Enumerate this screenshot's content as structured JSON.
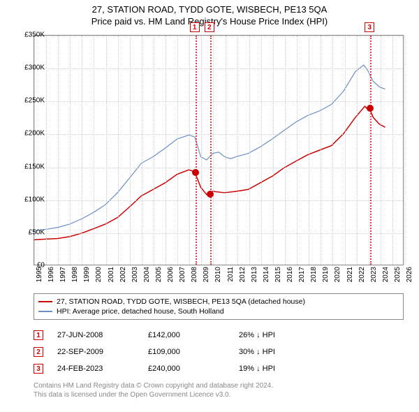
{
  "title": {
    "line1": "27, STATION ROAD, TYDD GOTE, WISBECH, PE13 5QA",
    "line2": "Price paid vs. HM Land Registry's House Price Index (HPI)"
  },
  "chart": {
    "type": "line",
    "xlim": [
      1995,
      2026
    ],
    "ylim": [
      0,
      350000
    ],
    "ytick_step": 50000,
    "yticks": [
      "£0",
      "£50K",
      "£100K",
      "£150K",
      "£200K",
      "£250K",
      "£300K",
      "£350K"
    ],
    "xticks": [
      1995,
      1996,
      1997,
      1998,
      1999,
      2000,
      2001,
      2002,
      2003,
      2004,
      2005,
      2006,
      2007,
      2008,
      2009,
      2010,
      2011,
      2012,
      2013,
      2014,
      2015,
      2016,
      2017,
      2018,
      2019,
      2020,
      2021,
      2022,
      2023,
      2024,
      2025,
      2026
    ],
    "grid_color": "#cccccc",
    "background_color": "#ffffff",
    "border_color": "#888888",
    "series": [
      {
        "name": "property",
        "label": "27, STATION ROAD, TYDD GOTE, WISBECH, PE13 5QA (detached house)",
        "color": "#cc0000",
        "line_width": 1.5,
        "points": [
          [
            1995.0,
            38000
          ],
          [
            1996.0,
            39000
          ],
          [
            1997.0,
            40000
          ],
          [
            1998.0,
            43000
          ],
          [
            1999.0,
            48000
          ],
          [
            2000.0,
            55000
          ],
          [
            2001.0,
            62000
          ],
          [
            2002.0,
            72000
          ],
          [
            2003.0,
            88000
          ],
          [
            2004.0,
            105000
          ],
          [
            2005.0,
            115000
          ],
          [
            2006.0,
            125000
          ],
          [
            2007.0,
            138000
          ],
          [
            2008.0,
            145000
          ],
          [
            2008.49,
            142000
          ],
          [
            2009.0,
            118000
          ],
          [
            2009.5,
            107000
          ],
          [
            2009.73,
            109000
          ],
          [
            2010.0,
            112000
          ],
          [
            2011.0,
            110000
          ],
          [
            2012.0,
            112000
          ],
          [
            2013.0,
            115000
          ],
          [
            2014.0,
            125000
          ],
          [
            2015.0,
            135000
          ],
          [
            2016.0,
            148000
          ],
          [
            2017.0,
            158000
          ],
          [
            2018.0,
            168000
          ],
          [
            2019.0,
            175000
          ],
          [
            2020.0,
            182000
          ],
          [
            2021.0,
            200000
          ],
          [
            2022.0,
            225000
          ],
          [
            2022.8,
            242000
          ],
          [
            2023.0,
            238000
          ],
          [
            2023.15,
            240000
          ],
          [
            2023.5,
            225000
          ],
          [
            2024.0,
            215000
          ],
          [
            2024.5,
            210000
          ]
        ]
      },
      {
        "name": "hpi",
        "label": "HPI: Average price, detached house, South Holland",
        "color": "#6a8fc7",
        "line_width": 1.2,
        "points": [
          [
            1995.0,
            52000
          ],
          [
            1996.0,
            54000
          ],
          [
            1997.0,
            57000
          ],
          [
            1998.0,
            62000
          ],
          [
            1999.0,
            70000
          ],
          [
            2000.0,
            80000
          ],
          [
            2001.0,
            92000
          ],
          [
            2002.0,
            110000
          ],
          [
            2003.0,
            132000
          ],
          [
            2004.0,
            155000
          ],
          [
            2005.0,
            165000
          ],
          [
            2006.0,
            178000
          ],
          [
            2007.0,
            192000
          ],
          [
            2008.0,
            198000
          ],
          [
            2008.5,
            195000
          ],
          [
            2009.0,
            165000
          ],
          [
            2009.5,
            160000
          ],
          [
            2010.0,
            170000
          ],
          [
            2010.5,
            172000
          ],
          [
            2011.0,
            165000
          ],
          [
            2011.5,
            162000
          ],
          [
            2012.0,
            165000
          ],
          [
            2013.0,
            170000
          ],
          [
            2014.0,
            180000
          ],
          [
            2015.0,
            192000
          ],
          [
            2016.0,
            205000
          ],
          [
            2017.0,
            218000
          ],
          [
            2018.0,
            228000
          ],
          [
            2019.0,
            235000
          ],
          [
            2020.0,
            245000
          ],
          [
            2021.0,
            265000
          ],
          [
            2022.0,
            295000
          ],
          [
            2022.7,
            305000
          ],
          [
            2023.0,
            298000
          ],
          [
            2023.5,
            280000
          ],
          [
            2024.0,
            272000
          ],
          [
            2024.5,
            268000
          ]
        ]
      }
    ],
    "events": [
      {
        "id": "1",
        "x": 2008.49,
        "date": "27-JUN-2008",
        "price": "£142,000",
        "delta": "26% ↓ HPI",
        "dot_y": 142000
      },
      {
        "id": "2",
        "x": 2009.73,
        "date": "22-SEP-2009",
        "price": "£109,000",
        "delta": "30% ↓ HPI",
        "dot_y": 109000
      },
      {
        "id": "3",
        "x": 2023.15,
        "date": "24-FEB-2023",
        "price": "£240,000",
        "delta": "19% ↓ HPI",
        "dot_y": 240000
      }
    ],
    "event_line_color": "#e04040",
    "event_marker_border": "#cc0000"
  },
  "footer": {
    "line1": "Contains HM Land Registry data © Crown copyright and database right 2024.",
    "line2": "This data is licensed under the Open Government Licence v3.0."
  }
}
